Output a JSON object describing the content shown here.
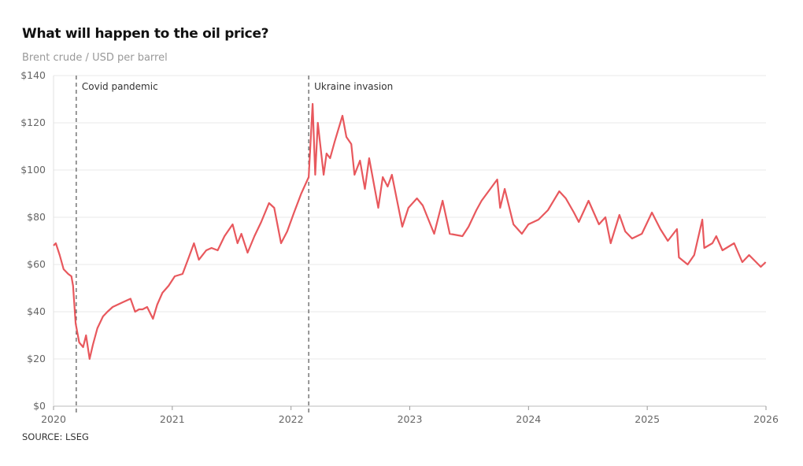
{
  "chart_data": {
    "type": "line",
    "title": "What will happen to the oil price?",
    "subtitle": "Brent crude / USD per barrel",
    "source": "SOURCE: LSEG",
    "xlabel": "",
    "ylabel": "",
    "ylim": [
      0,
      140
    ],
    "xlim": [
      "2020-01-01",
      "2026-01-01"
    ],
    "y_ticks": [
      "$0",
      "$20",
      "$40",
      "$60",
      "$80",
      "$100",
      "$120",
      "$140"
    ],
    "x_ticks": [
      "2020",
      "2021",
      "2022",
      "2023",
      "2024",
      "2025",
      "2026"
    ],
    "grid": true,
    "line_color": "#e8585d",
    "annotations": [
      {
        "date": "2020-03-11",
        "label": "Covid pandemic"
      },
      {
        "date": "2022-02-24",
        "label": "Ukraine invasion"
      }
    ],
    "series": [
      {
        "points": [
          [
            "2020-01-01",
            68
          ],
          [
            "2020-01-08",
            69
          ],
          [
            "2020-01-20",
            64
          ],
          [
            "2020-02-01",
            58
          ],
          [
            "2020-02-15",
            56
          ],
          [
            "2020-02-25",
            55
          ],
          [
            "2020-03-01",
            51
          ],
          [
            "2020-03-09",
            35
          ],
          [
            "2020-03-20",
            27
          ],
          [
            "2020-04-01",
            25
          ],
          [
            "2020-04-10",
            30
          ],
          [
            "2020-04-21",
            20
          ],
          [
            "2020-05-01",
            26
          ],
          [
            "2020-05-15",
            33
          ],
          [
            "2020-06-01",
            38
          ],
          [
            "2020-06-15",
            40
          ],
          [
            "2020-07-01",
            42
          ],
          [
            "2020-08-01",
            44
          ],
          [
            "2020-08-25",
            45.5
          ],
          [
            "2020-09-08",
            40
          ],
          [
            "2020-09-20",
            41
          ],
          [
            "2020-10-01",
            41
          ],
          [
            "2020-10-15",
            42
          ],
          [
            "2020-11-02",
            37
          ],
          [
            "2020-11-15",
            43
          ],
          [
            "2020-12-01",
            48
          ],
          [
            "2020-12-20",
            51
          ],
          [
            "2021-01-08",
            55
          ],
          [
            "2021-02-01",
            56
          ],
          [
            "2021-02-20",
            63
          ],
          [
            "2021-03-08",
            69
          ],
          [
            "2021-03-23",
            62
          ],
          [
            "2021-04-15",
            66
          ],
          [
            "2021-05-01",
            67
          ],
          [
            "2021-05-20",
            66
          ],
          [
            "2021-06-10",
            72
          ],
          [
            "2021-07-05",
            77
          ],
          [
            "2021-07-20",
            69
          ],
          [
            "2021-08-01",
            73
          ],
          [
            "2021-08-20",
            65
          ],
          [
            "2021-09-10",
            72
          ],
          [
            "2021-10-01",
            78
          ],
          [
            "2021-10-25",
            86
          ],
          [
            "2021-11-10",
            84
          ],
          [
            "2021-12-01",
            69
          ],
          [
            "2021-12-20",
            74
          ],
          [
            "2022-01-10",
            82
          ],
          [
            "2022-02-01",
            90
          ],
          [
            "2022-02-24",
            97
          ],
          [
            "2022-03-08",
            128
          ],
          [
            "2022-03-16",
            98
          ],
          [
            "2022-03-24",
            120
          ],
          [
            "2022-04-11",
            98
          ],
          [
            "2022-04-20",
            107
          ],
          [
            "2022-05-01",
            105
          ],
          [
            "2022-05-15",
            112
          ],
          [
            "2022-06-08",
            123
          ],
          [
            "2022-06-20",
            114
          ],
          [
            "2022-07-05",
            111
          ],
          [
            "2022-07-15",
            98
          ],
          [
            "2022-08-01",
            104
          ],
          [
            "2022-08-16",
            92
          ],
          [
            "2022-08-29",
            105
          ],
          [
            "2022-09-26",
            84
          ],
          [
            "2022-10-10",
            97
          ],
          [
            "2022-10-25",
            93
          ],
          [
            "2022-11-07",
            98
          ],
          [
            "2022-12-09",
            76
          ],
          [
            "2022-12-28",
            84
          ],
          [
            "2023-01-23",
            88
          ],
          [
            "2023-02-10",
            85
          ],
          [
            "2023-03-17",
            73
          ],
          [
            "2023-04-12",
            87
          ],
          [
            "2023-05-04",
            73
          ],
          [
            "2023-06-12",
            72
          ],
          [
            "2023-07-01",
            76
          ],
          [
            "2023-07-25",
            83
          ],
          [
            "2023-08-10",
            87
          ],
          [
            "2023-09-27",
            96
          ],
          [
            "2023-10-06",
            84
          ],
          [
            "2023-10-20",
            92
          ],
          [
            "2023-11-16",
            77
          ],
          [
            "2023-12-12",
            73
          ],
          [
            "2024-01-01",
            77
          ],
          [
            "2024-02-01",
            79
          ],
          [
            "2024-03-01",
            83
          ],
          [
            "2024-04-05",
            91
          ],
          [
            "2024-04-25",
            88
          ],
          [
            "2024-05-20",
            82
          ],
          [
            "2024-06-04",
            78
          ],
          [
            "2024-07-04",
            87
          ],
          [
            "2024-08-05",
            77
          ],
          [
            "2024-08-25",
            80
          ],
          [
            "2024-09-10",
            69
          ],
          [
            "2024-10-07",
            81
          ],
          [
            "2024-10-25",
            74
          ],
          [
            "2024-11-15",
            71
          ],
          [
            "2024-12-15",
            73
          ],
          [
            "2025-01-15",
            82
          ],
          [
            "2025-02-10",
            75
          ],
          [
            "2025-03-05",
            70
          ],
          [
            "2025-04-02",
            75
          ],
          [
            "2025-04-08",
            63
          ],
          [
            "2025-05-05",
            60
          ],
          [
            "2025-05-25",
            64
          ],
          [
            "2025-06-19",
            79
          ],
          [
            "2025-06-25",
            67
          ],
          [
            "2025-07-20",
            69
          ],
          [
            "2025-08-01",
            72
          ],
          [
            "2025-08-20",
            66
          ],
          [
            "2025-09-25",
            69
          ],
          [
            "2025-10-20",
            61
          ],
          [
            "2025-11-10",
            64
          ],
          [
            "2025-12-16",
            59
          ],
          [
            "2025-12-31",
            61
          ]
        ]
      }
    ]
  }
}
